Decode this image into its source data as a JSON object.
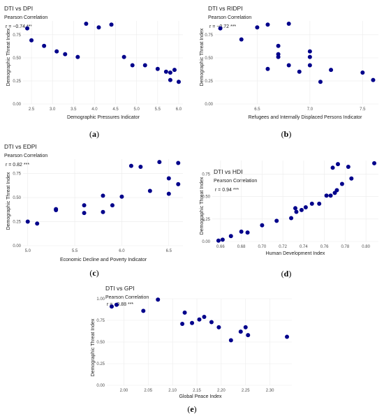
{
  "colors": {
    "point": "#00008B",
    "grid": "#EBEBEB",
    "text": "#1A1A1A"
  },
  "chart_data": [
    {
      "type": "scatter",
      "caption": "a",
      "title": "DTI vs DPI",
      "subtitle": "Pearson Correlation",
      "annotation": "r = −0.74 ***",
      "xlabel": "Demographic Pressures Indicator",
      "ylabel": "Demographic Threat Index",
      "xlim": [
        2.3,
        6.1
      ],
      "ylim": [
        0.0,
        0.9
      ],
      "xticks": [
        2.5,
        3.0,
        3.5,
        4.0,
        4.5,
        5.0,
        5.5,
        6.0
      ],
      "yticks": [
        0.0,
        0.25,
        0.5,
        0.75
      ],
      "xtick_labels": [
        "2.5",
        "3.0",
        "3.5",
        "4.0",
        "4.5",
        "5.0",
        "5.5",
        "6.0"
      ],
      "ytick_labels": [
        "0.00",
        "0.25",
        "0.50",
        "0.75"
      ],
      "grid": true,
      "points": [
        {
          "x": 2.4,
          "y": 0.82
        },
        {
          "x": 2.5,
          "y": 0.69
        },
        {
          "x": 2.8,
          "y": 0.63
        },
        {
          "x": 3.1,
          "y": 0.57
        },
        {
          "x": 3.3,
          "y": 0.54
        },
        {
          "x": 3.6,
          "y": 0.51
        },
        {
          "x": 3.8,
          "y": 0.87
        },
        {
          "x": 4.1,
          "y": 0.83
        },
        {
          "x": 4.4,
          "y": 0.86
        },
        {
          "x": 4.7,
          "y": 0.51
        },
        {
          "x": 4.9,
          "y": 0.42
        },
        {
          "x": 5.2,
          "y": 0.42
        },
        {
          "x": 5.5,
          "y": 0.38
        },
        {
          "x": 5.7,
          "y": 0.35
        },
        {
          "x": 5.8,
          "y": 0.34
        },
        {
          "x": 5.8,
          "y": 0.26
        },
        {
          "x": 5.9,
          "y": 0.37
        },
        {
          "x": 6.0,
          "y": 0.24
        }
      ]
    },
    {
      "type": "scatter",
      "caption": "b",
      "title": "DTI vs RIDPI",
      "subtitle": "Pearson Correlation",
      "annotation": "r = −0.72 ***",
      "xlabel": "Refugees and Internally Displaced Persons Indicator",
      "ylabel": "Demographic Threat Index",
      "xlim": [
        6.1,
        7.65
      ],
      "ylim": [
        0.0,
        0.9
      ],
      "xticks": [
        6.5,
        7.0,
        7.5
      ],
      "yticks": [
        0.0,
        0.25,
        0.5,
        0.75
      ],
      "xtick_labels": [
        "6.5",
        "7.0",
        "7.5"
      ],
      "ytick_labels": [
        "0.00",
        "0.25",
        "0.50",
        "0.75"
      ],
      "grid": true,
      "points": [
        {
          "x": 6.15,
          "y": 0.82
        },
        {
          "x": 6.35,
          "y": 0.7
        },
        {
          "x": 6.5,
          "y": 0.83
        },
        {
          "x": 6.6,
          "y": 0.86
        },
        {
          "x": 6.6,
          "y": 0.38
        },
        {
          "x": 6.7,
          "y": 0.63
        },
        {
          "x": 6.7,
          "y": 0.54
        },
        {
          "x": 6.7,
          "y": 0.51
        },
        {
          "x": 6.8,
          "y": 0.87
        },
        {
          "x": 6.8,
          "y": 0.42
        },
        {
          "x": 6.9,
          "y": 0.35
        },
        {
          "x": 7.0,
          "y": 0.57
        },
        {
          "x": 7.0,
          "y": 0.51
        },
        {
          "x": 7.0,
          "y": 0.42
        },
        {
          "x": 7.1,
          "y": 0.24
        },
        {
          "x": 7.2,
          "y": 0.37
        },
        {
          "x": 7.5,
          "y": 0.34
        },
        {
          "x": 7.6,
          "y": 0.26
        }
      ]
    },
    {
      "type": "scatter",
      "caption": "c",
      "title": "DTI vs EDPI",
      "subtitle": "Pearson Correlation",
      "annotation": "r = 0.82 ***",
      "xlabel": "Economic Decline and Poverty Indicator",
      "ylabel": "Demographic Threat Index",
      "xlim": [
        4.95,
        6.65
      ],
      "ylim": [
        0.0,
        0.9
      ],
      "xticks": [
        5.0,
        5.5,
        6.0,
        6.5
      ],
      "yticks": [
        0.0,
        0.25,
        0.5,
        0.75
      ],
      "xtick_labels": [
        "5.0",
        "5.5",
        "6.0",
        "6.5"
      ],
      "ytick_labels": [
        "0.00",
        "0.25",
        "0.50",
        "0.75"
      ],
      "grid": true,
      "points": [
        {
          "x": 5.0,
          "y": 0.25
        },
        {
          "x": 5.1,
          "y": 0.23
        },
        {
          "x": 5.3,
          "y": 0.38
        },
        {
          "x": 5.3,
          "y": 0.37
        },
        {
          "x": 5.6,
          "y": 0.42
        },
        {
          "x": 5.6,
          "y": 0.34
        },
        {
          "x": 5.8,
          "y": 0.52
        },
        {
          "x": 5.8,
          "y": 0.35
        },
        {
          "x": 5.9,
          "y": 0.42
        },
        {
          "x": 6.0,
          "y": 0.51
        },
        {
          "x": 6.1,
          "y": 0.83
        },
        {
          "x": 6.2,
          "y": 0.82
        },
        {
          "x": 6.3,
          "y": 0.57
        },
        {
          "x": 6.4,
          "y": 0.87
        },
        {
          "x": 6.5,
          "y": 0.7
        },
        {
          "x": 6.5,
          "y": 0.54
        },
        {
          "x": 6.6,
          "y": 0.86
        },
        {
          "x": 6.6,
          "y": 0.64
        }
      ]
    },
    {
      "type": "scatter",
      "caption": "d",
      "title": "DTI vs HDI",
      "subtitle": "Pearson Correlation",
      "annotation": "r = 0.94 ***",
      "xlabel": "Human Development Index",
      "ylabel": "Demographic Threat Index",
      "xlim": [
        0.652,
        0.812
      ],
      "ylim": [
        0.0,
        0.9
      ],
      "xticks": [
        0.66,
        0.68,
        0.7,
        0.72,
        0.74,
        0.76,
        0.78,
        0.8
      ],
      "yticks": [
        0.0,
        0.25,
        0.5,
        0.75
      ],
      "xtick_labels": [
        "0.66",
        "0.68",
        "0.70",
        "0.72",
        "0.74",
        "0.76",
        "0.78",
        "0.80"
      ],
      "ytick_labels": [
        "0.00",
        "0.25",
        "0.50",
        "0.75"
      ],
      "grid": true,
      "points": [
        {
          "x": 0.658,
          "y": 0.01
        },
        {
          "x": 0.662,
          "y": 0.02
        },
        {
          "x": 0.67,
          "y": 0.06
        },
        {
          "x": 0.68,
          "y": 0.11
        },
        {
          "x": 0.686,
          "y": 0.1
        },
        {
          "x": 0.7,
          "y": 0.18
        },
        {
          "x": 0.714,
          "y": 0.23
        },
        {
          "x": 0.728,
          "y": 0.26
        },
        {
          "x": 0.732,
          "y": 0.37
        },
        {
          "x": 0.733,
          "y": 0.33
        },
        {
          "x": 0.738,
          "y": 0.35
        },
        {
          "x": 0.742,
          "y": 0.38
        },
        {
          "x": 0.748,
          "y": 0.42
        },
        {
          "x": 0.755,
          "y": 0.42
        },
        {
          "x": 0.762,
          "y": 0.51
        },
        {
          "x": 0.766,
          "y": 0.51
        },
        {
          "x": 0.768,
          "y": 0.82
        },
        {
          "x": 0.77,
          "y": 0.54
        },
        {
          "x": 0.772,
          "y": 0.57
        },
        {
          "x": 0.773,
          "y": 0.86
        },
        {
          "x": 0.777,
          "y": 0.64
        },
        {
          "x": 0.783,
          "y": 0.83
        },
        {
          "x": 0.786,
          "y": 0.7
        },
        {
          "x": 0.808,
          "y": 0.87
        }
      ]
    },
    {
      "type": "scatter",
      "caption": "e",
      "title": "DTI vs GPI",
      "subtitle": "Pearson Correlation",
      "annotation": "r = −0.88 ***",
      "xlabel": "Global Peace Index",
      "ylabel": "Demographic Threat Index",
      "xlim": [
        1.965,
        2.345
      ],
      "ylim": [
        0.0,
        1.0
      ],
      "xticks": [
        2.0,
        2.05,
        2.1,
        2.15,
        2.2,
        2.25,
        2.3
      ],
      "yticks": [
        0.0,
        0.25,
        0.5,
        0.75,
        1.0
      ],
      "xtick_labels": [
        "2.00",
        "2.05",
        "2.10",
        "2.15",
        "2.20",
        "2.25",
        "2.30"
      ],
      "ytick_labels": [
        "0.00",
        "0.25",
        "0.50",
        "0.75",
        "1.00"
      ],
      "grid": true,
      "points": [
        {
          "x": 1.975,
          "y": 0.91
        },
        {
          "x": 1.985,
          "y": 0.93
        },
        {
          "x": 2.04,
          "y": 0.86
        },
        {
          "x": 2.07,
          "y": 0.99
        },
        {
          "x": 2.12,
          "y": 0.71
        },
        {
          "x": 2.125,
          "y": 0.84
        },
        {
          "x": 2.14,
          "y": 0.72
        },
        {
          "x": 2.155,
          "y": 0.76
        },
        {
          "x": 2.165,
          "y": 0.79
        },
        {
          "x": 2.18,
          "y": 0.73
        },
        {
          "x": 2.195,
          "y": 0.67
        },
        {
          "x": 2.22,
          "y": 0.52
        },
        {
          "x": 2.24,
          "y": 0.62
        },
        {
          "x": 2.25,
          "y": 0.67
        },
        {
          "x": 2.255,
          "y": 0.58
        },
        {
          "x": 2.335,
          "y": 0.56
        }
      ]
    }
  ]
}
